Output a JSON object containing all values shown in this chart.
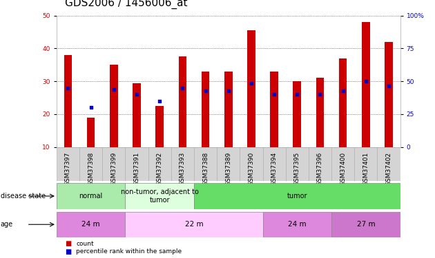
{
  "title": "GDS2006 / 1456006_at",
  "samples": [
    "GSM37397",
    "GSM37398",
    "GSM37399",
    "GSM37391",
    "GSM37392",
    "GSM37393",
    "GSM37388",
    "GSM37389",
    "GSM37390",
    "GSM37394",
    "GSM37395",
    "GSM37396",
    "GSM37400",
    "GSM37401",
    "GSM37402"
  ],
  "counts": [
    38,
    19,
    35,
    29.5,
    22.5,
    37.5,
    33,
    33,
    45.5,
    33,
    30,
    31,
    37,
    48,
    42
  ],
  "percentiles": [
    28,
    22,
    27.5,
    26,
    24,
    28,
    27,
    27,
    29.5,
    26,
    26,
    26,
    27,
    30,
    28.5
  ],
  "ylim_left": [
    10,
    50
  ],
  "ylim_right": [
    0,
    100
  ],
  "bar_color": "#cc0000",
  "dot_color": "#0000cc",
  "plot_bg": "#ffffff",
  "disease_state_groups": [
    {
      "label": "normal",
      "start": 0,
      "end": 3,
      "color": "#aaeaaa"
    },
    {
      "label": "non-tumor, adjacent to\ntumor",
      "start": 3,
      "end": 6,
      "color": "#ddffdd"
    },
    {
      "label": "tumor",
      "start": 6,
      "end": 15,
      "color": "#66dd66"
    }
  ],
  "age_groups": [
    {
      "label": "24 m",
      "start": 0,
      "end": 3,
      "color": "#dd88dd"
    },
    {
      "label": "22 m",
      "start": 3,
      "end": 9,
      "color": "#ffccff"
    },
    {
      "label": "24 m",
      "start": 9,
      "end": 12,
      "color": "#dd88dd"
    },
    {
      "label": "27 m",
      "start": 12,
      "end": 15,
      "color": "#cc77cc"
    }
  ],
  "legend_items": [
    {
      "label": "count",
      "color": "#cc0000"
    },
    {
      "label": "percentile rank within the sample",
      "color": "#0000cc"
    }
  ],
  "left_yticks": [
    10,
    20,
    30,
    40,
    50
  ],
  "right_yticks": [
    0,
    25,
    50,
    75,
    100
  ],
  "right_yticklabels": [
    "0",
    "25",
    "50",
    "75",
    "100%"
  ],
  "title_fontsize": 11,
  "tick_fontsize": 6.5,
  "annot_fontsize": 7.5
}
